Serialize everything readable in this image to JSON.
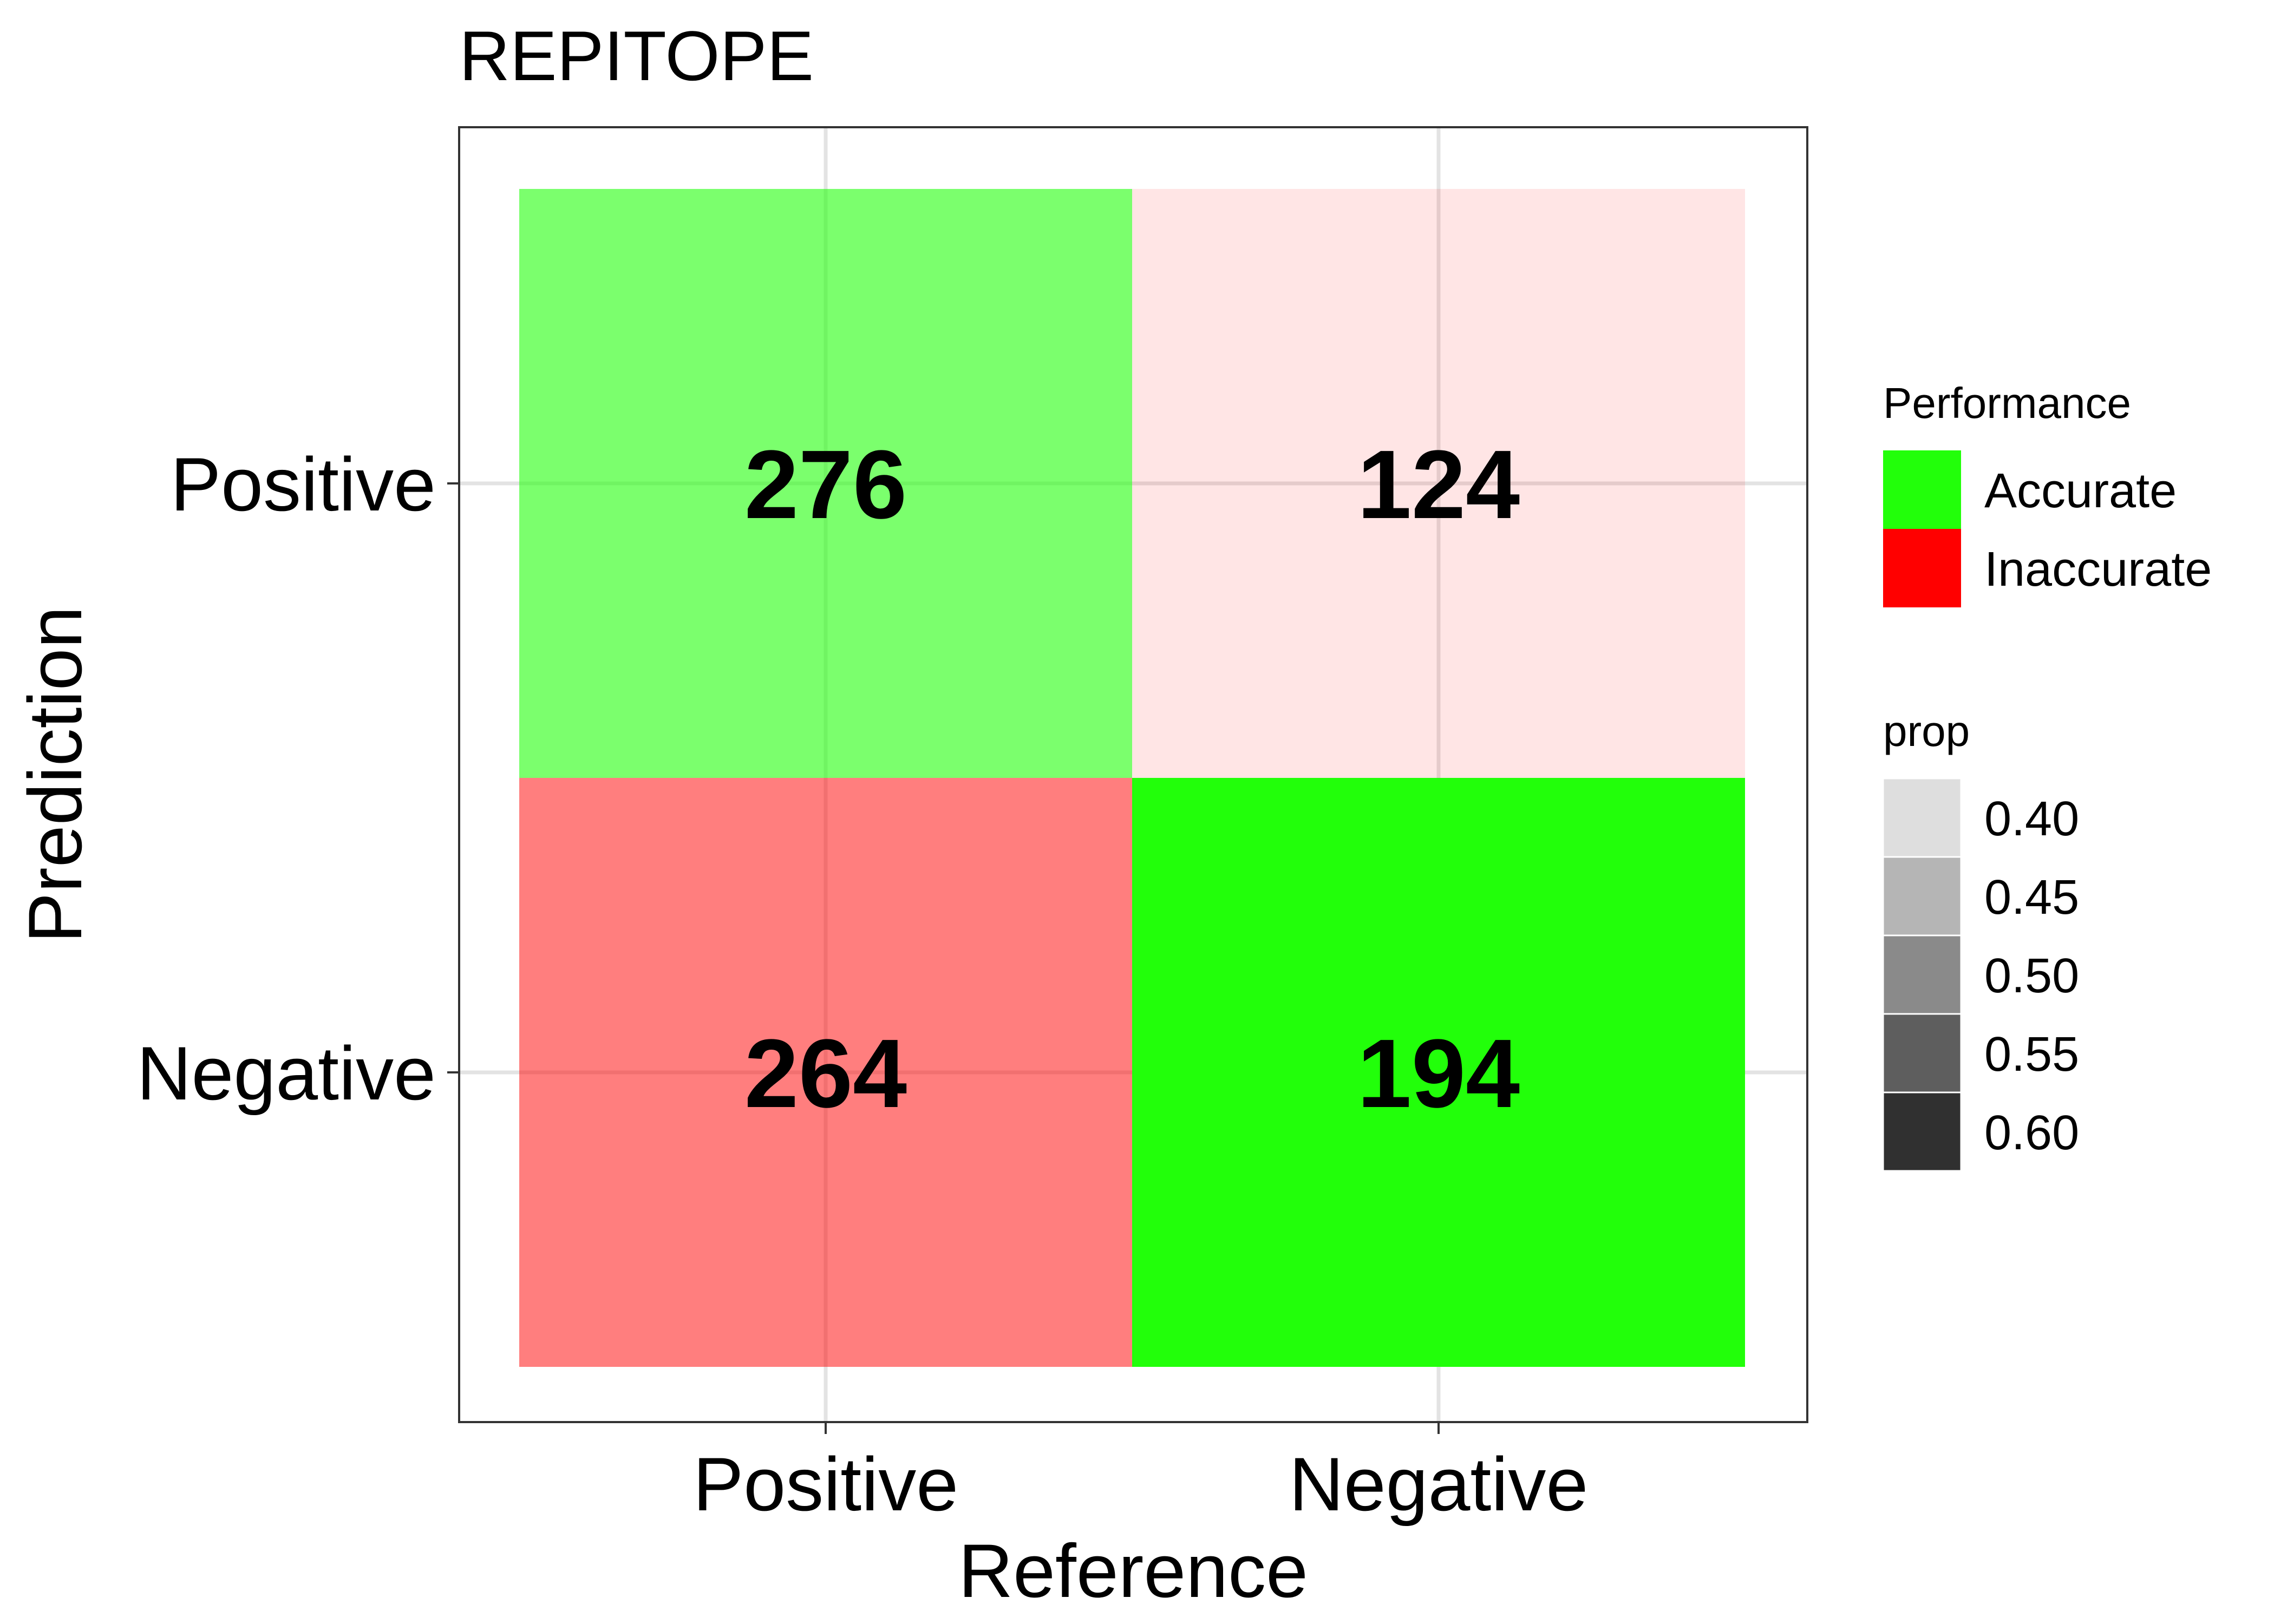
{
  "chart_data": {
    "type": "heatmap",
    "title": "REPITOPE",
    "xlabel": "Reference",
    "ylabel": "Prediction",
    "x_categories": [
      "Positive",
      "Negative"
    ],
    "y_categories": [
      "Positive",
      "Negative"
    ],
    "cells": [
      {
        "reference": "Positive",
        "prediction": "Positive",
        "value": 276,
        "performance": "Accurate",
        "prop": 0.51
      },
      {
        "reference": "Negative",
        "prediction": "Positive",
        "value": 124,
        "performance": "Inaccurate",
        "prop": 0.39
      },
      {
        "reference": "Positive",
        "prediction": "Negative",
        "value": 264,
        "performance": "Inaccurate",
        "prop": 0.49
      },
      {
        "reference": "Negative",
        "prediction": "Negative",
        "value": 194,
        "performance": "Accurate",
        "prop": 0.61
      }
    ],
    "grid": true,
    "legends": {
      "fill": {
        "title": "Performance",
        "items": [
          {
            "label": "Accurate",
            "color": "#22ff0a"
          },
          {
            "label": "Inaccurate",
            "color": "#ff0000"
          }
        ]
      },
      "alpha": {
        "title": "prop",
        "items": [
          {
            "label": "0.40",
            "value": 0.4,
            "color": "#dedede"
          },
          {
            "label": "0.45",
            "value": 0.45,
            "color": "#b5b5b5"
          },
          {
            "label": "0.50",
            "value": 0.5,
            "color": "#8a8a8a"
          },
          {
            "label": "0.55",
            "value": 0.55,
            "color": "#5e5e5e"
          },
          {
            "label": "0.60",
            "value": 0.6,
            "color": "#303030"
          }
        ]
      },
      "placement": "right"
    }
  }
}
